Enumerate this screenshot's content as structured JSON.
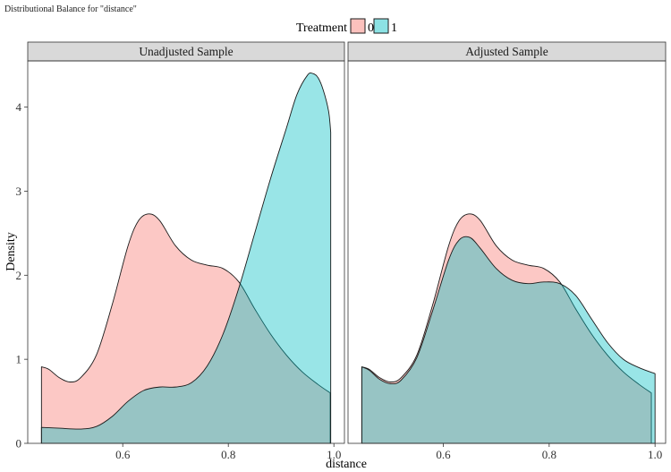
{
  "chart_data": {
    "type": "area",
    "title": "Distributional Balance for \"distance\"",
    "xlabel": "distance",
    "ylabel": "Density",
    "xlim": [
      0.42,
      1.02
    ],
    "ylim": [
      0,
      4.55
    ],
    "x_ticks": [
      "0.6",
      "0.8",
      "1.0"
    ],
    "x_tick_values": [
      0.6,
      0.8,
      1.0
    ],
    "y_ticks": [
      "0",
      "1",
      "2",
      "3",
      "4"
    ],
    "y_tick_values": [
      0,
      1,
      2,
      3,
      4
    ],
    "grid": false,
    "legend": {
      "title": "Treatment",
      "placement": "top",
      "entries": [
        "0",
        "1"
      ]
    },
    "colors": {
      "0": "#F8766D",
      "1": "#00BFC4",
      "outline": "#1a1a1a",
      "strip_bg": "#D9D9D9"
    },
    "panels": [
      {
        "title": "Unadjusted Sample",
        "series": [
          {
            "name": "0",
            "x": [
              0.446,
              0.46,
              0.48,
              0.5,
              0.52,
              0.55,
              0.58,
              0.61,
              0.63,
              0.65,
              0.67,
              0.7,
              0.73,
              0.76,
              0.79,
              0.82,
              0.85,
              0.88,
              0.91,
              0.94,
              0.97,
              0.993
            ],
            "y": [
              0.91,
              0.88,
              0.78,
              0.73,
              0.78,
              1.05,
              1.65,
              2.35,
              2.65,
              2.73,
              2.65,
              2.35,
              2.18,
              2.12,
              2.08,
              1.92,
              1.6,
              1.3,
              1.05,
              0.85,
              0.7,
              0.6
            ]
          },
          {
            "name": "1",
            "x": [
              0.446,
              0.48,
              0.52,
              0.55,
              0.58,
              0.61,
              0.64,
              0.67,
              0.7,
              0.73,
              0.76,
              0.79,
              0.82,
              0.85,
              0.88,
              0.91,
              0.93,
              0.95,
              0.96,
              0.97,
              0.98,
              0.99,
              0.994
            ],
            "y": [
              0.19,
              0.18,
              0.17,
              0.2,
              0.32,
              0.5,
              0.63,
              0.67,
              0.67,
              0.72,
              0.92,
              1.3,
              1.85,
              2.5,
              3.15,
              3.75,
              4.15,
              4.38,
              4.4,
              4.35,
              4.2,
              3.95,
              3.7
            ]
          }
        ]
      },
      {
        "title": "Adjusted Sample",
        "series": [
          {
            "name": "0",
            "x": [
              0.446,
              0.46,
              0.48,
              0.5,
              0.52,
              0.55,
              0.58,
              0.61,
              0.63,
              0.65,
              0.67,
              0.7,
              0.73,
              0.76,
              0.79,
              0.82,
              0.85,
              0.88,
              0.91,
              0.94,
              0.97,
              0.993
            ],
            "y": [
              0.91,
              0.88,
              0.78,
              0.73,
              0.78,
              1.05,
              1.65,
              2.35,
              2.65,
              2.73,
              2.65,
              2.35,
              2.18,
              2.12,
              2.08,
              1.92,
              1.6,
              1.3,
              1.05,
              0.85,
              0.7,
              0.6
            ]
          },
          {
            "name": "1",
            "x": [
              0.446,
              0.46,
              0.48,
              0.5,
              0.52,
              0.55,
              0.58,
              0.61,
              0.63,
              0.65,
              0.67,
              0.7,
              0.73,
              0.76,
              0.79,
              0.82,
              0.85,
              0.88,
              0.91,
              0.94,
              0.97,
              1.0
            ],
            "y": [
              0.91,
              0.87,
              0.76,
              0.71,
              0.75,
              1.02,
              1.58,
              2.18,
              2.42,
              2.45,
              2.32,
              2.08,
              1.94,
              1.9,
              1.92,
              1.9,
              1.76,
              1.48,
              1.2,
              1.0,
              0.9,
              0.83
            ]
          }
        ]
      }
    ]
  }
}
